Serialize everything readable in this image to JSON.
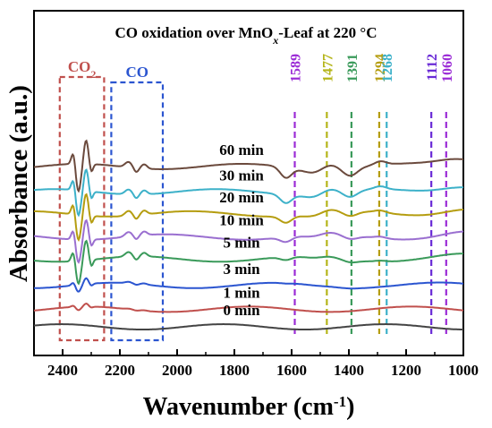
{
  "chart_data": {
    "type": "line",
    "title": "CO oxidation over MnO",
    "title_sub": "x",
    "title_suffix": "-Leaf at 220 °C",
    "xlabel": "Wavenumber (cm",
    "xlabel_sup": "-1",
    "xlabel_close": ")",
    "ylabel": "Absorbance (a.u.)",
    "xlim": [
      2500,
      1000
    ],
    "x_reversed": true,
    "ylim": [
      0,
      1
    ],
    "xticks": [
      2400,
      2200,
      2000,
      1800,
      1600,
      1400,
      1200,
      1000
    ],
    "xtick_labels": [
      "2400",
      "2200",
      "2000",
      "1800",
      "1600",
      "1400",
      "1200",
      "1000"
    ],
    "grid": false,
    "legend": "none",
    "series": [
      {
        "name": "0 min",
        "color": "#444444",
        "baseline": 0.012,
        "level": 0.0,
        "feature": 0.0
      },
      {
        "name": "1 min",
        "color": "#c0504d",
        "baseline": 0.092,
        "level": 0.0,
        "feature": 0.15
      },
      {
        "name": "3 min",
        "color": "#2b55d0",
        "baseline": 0.2,
        "level": 0.05,
        "feature": 0.3
      },
      {
        "name": "5 min",
        "color": "#3a9a5a",
        "baseline": 0.32,
        "level": 0.3,
        "feature": 1.0
      },
      {
        "name": "10 min",
        "color": "#9a6fd0",
        "baseline": 0.42,
        "level": 0.45,
        "feature": 1.0
      },
      {
        "name": "20 min",
        "color": "#b59d10",
        "baseline": 0.525,
        "level": 0.6,
        "feature": 1.1
      },
      {
        "name": "30 min",
        "color": "#3db1c9",
        "baseline": 0.625,
        "level": 0.8,
        "feature": 1.1
      },
      {
        "name": "60 min",
        "color": "#6b4a3d",
        "baseline": 0.74,
        "level": 1.0,
        "feature": 1.2
      }
    ],
    "annotations": {
      "region_boxes": [
        {
          "label": "CO",
          "sub": "2",
          "x_from": 2410,
          "x_to": 2255,
          "color": "#c0504d"
        },
        {
          "label": "CO",
          "sub": "",
          "x_from": 2230,
          "x_to": 2050,
          "color": "#2b55d0"
        }
      ],
      "bands": [
        {
          "label": "1589",
          "x": 1589,
          "color": "#9b2bd6"
        },
        {
          "label": "1477",
          "x": 1477,
          "color": "#b5b51a"
        },
        {
          "label": "1391",
          "x": 1391,
          "color": "#3a9a5a"
        },
        {
          "label": "1294",
          "x": 1294,
          "color": "#b59d10"
        },
        {
          "label": "1268",
          "x": 1268,
          "color": "#3db1c9"
        },
        {
          "label": "1112",
          "x": 1112,
          "color": "#6a2bd6"
        },
        {
          "label": "1060",
          "x": 1060,
          "color": "#9b2bd6"
        }
      ]
    }
  }
}
